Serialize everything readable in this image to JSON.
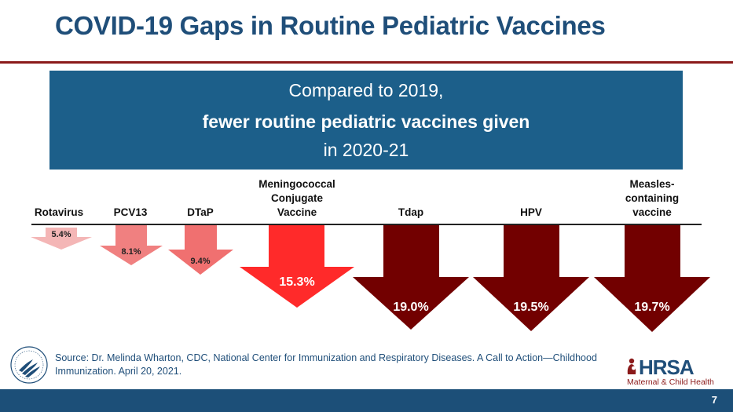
{
  "title": "COVID-19 Gaps in Routine Pediatric Vaccines",
  "banner": {
    "line1": "Compared to 2019,",
    "line2": "fewer routine pediatric vaccines given",
    "line3": "in 2020-21"
  },
  "vaccines": [
    {
      "label": "Rotavirus",
      "value_label": "5.4%",
      "color": "#f4b6b6"
    },
    {
      "label": "PCV13",
      "value_label": "8.1%",
      "color": "#f08080"
    },
    {
      "label": "DTaP",
      "value_label": "9.4%",
      "color": "#f07070"
    },
    {
      "label": "Meningococcal\nConjugate\nVaccine",
      "value_label": "15.3%",
      "color": "#ff2a2a"
    },
    {
      "label": "Tdap",
      "value_label": "19.0%",
      "color": "#720000"
    },
    {
      "label": "HPV",
      "value_label": "19.5%",
      "color": "#720000"
    },
    {
      "label": "Measles-\ncontaining\nvaccine",
      "value_label": "19.7%",
      "color": "#720000"
    }
  ],
  "source": "Source:  Dr. Melinda Wharton, CDC, National Center for Immunization and Respiratory Diseases. A Call to Action—Childhood Immunization. April 20, 2021.",
  "logo": {
    "name": "HRSA",
    "subtitle": "Maternal & Child Health"
  },
  "page_number": "7"
}
